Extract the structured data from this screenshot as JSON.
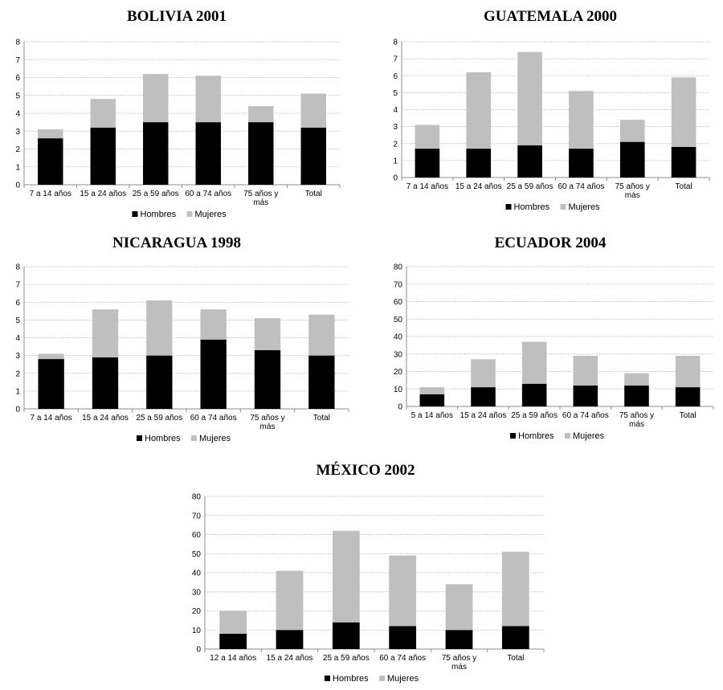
{
  "colors": {
    "hombres": "#000000",
    "mujeres": "#bfbfbf",
    "grid": "#b0b0b0",
    "axis": "#8c8c8c"
  },
  "chart_data": [
    {
      "type": "bar",
      "stacked": true,
      "title": "BOLIVIA 2001",
      "categories": [
        [
          "7 a 14 años"
        ],
        [
          "15 a 24 años"
        ],
        [
          "25 a 59 años"
        ],
        [
          "60 a 74 años"
        ],
        [
          "75 años y",
          "más"
        ],
        [
          "Total"
        ]
      ],
      "series": [
        {
          "name": "Hombres",
          "values": [
            2.6,
            3.2,
            3.5,
            3.5,
            3.5,
            3.2
          ]
        },
        {
          "name": "Mujeres",
          "values": [
            0.5,
            1.6,
            2.7,
            2.6,
            0.9,
            1.9
          ]
        }
      ],
      "ylim": [
        0,
        8
      ],
      "yticks": [
        0,
        1,
        2,
        3,
        4,
        5,
        6,
        7,
        8
      ],
      "grid": true,
      "legend": "bottom"
    },
    {
      "type": "bar",
      "stacked": true,
      "title": "GUATEMALA 2000",
      "categories": [
        [
          "7 a 14 años"
        ],
        [
          "15 a 24 años"
        ],
        [
          "25 a 59 años"
        ],
        [
          "60 a 74 años"
        ],
        [
          "75 años y",
          "más"
        ],
        [
          "Total"
        ]
      ],
      "series": [
        {
          "name": "Hombres",
          "values": [
            1.7,
            1.7,
            1.9,
            1.7,
            2.1,
            1.8
          ]
        },
        {
          "name": "Mujeres",
          "values": [
            1.4,
            4.5,
            5.5,
            3.4,
            1.3,
            4.1
          ]
        }
      ],
      "ylim": [
        0,
        8
      ],
      "yticks": [
        0,
        1,
        2,
        3,
        4,
        5,
        6,
        7,
        8
      ],
      "grid": true,
      "legend": "bottom"
    },
    {
      "type": "bar",
      "stacked": true,
      "title": "NICARAGUA 1998",
      "categories": [
        [
          "7 a 14 años"
        ],
        [
          "15 a 24 años"
        ],
        [
          "25 a 59 años"
        ],
        [
          "60 a 74 años"
        ],
        [
          "75 años y",
          "más"
        ],
        [
          "Total"
        ]
      ],
      "series": [
        {
          "name": "Hombres",
          "values": [
            2.8,
            2.9,
            3.0,
            3.9,
            3.3,
            3.0
          ]
        },
        {
          "name": "Mujeres",
          "values": [
            0.3,
            2.7,
            3.1,
            1.7,
            1.8,
            2.3
          ]
        }
      ],
      "ylim": [
        0,
        8
      ],
      "yticks": [
        0,
        1,
        2,
        3,
        4,
        5,
        6,
        7,
        8
      ],
      "grid": true,
      "legend": "bottom"
    },
    {
      "type": "bar",
      "stacked": true,
      "title": "ECUADOR 2004",
      "categories": [
        [
          "5 a 14 años"
        ],
        [
          "15 a 24 años"
        ],
        [
          "25 a 59 años"
        ],
        [
          "60 a 74 años"
        ],
        [
          "75 años y",
          "más"
        ],
        [
          "Total"
        ]
      ],
      "series": [
        {
          "name": "Hombres",
          "values": [
            7,
            11,
            13,
            12,
            12,
            11
          ]
        },
        {
          "name": "Mujeres",
          "values": [
            4,
            16,
            24,
            17,
            7,
            18
          ]
        }
      ],
      "ylim": [
        0,
        80
      ],
      "yticks": [
        0,
        10,
        20,
        30,
        40,
        50,
        60,
        70,
        80
      ],
      "grid": true,
      "legend": "bottom"
    },
    {
      "type": "bar",
      "stacked": true,
      "title": "MÉXICO 2002",
      "categories": [
        [
          "12 a 14 años"
        ],
        [
          "15 a 24 años"
        ],
        [
          "25 a 59 años"
        ],
        [
          "60 a 74 años"
        ],
        [
          "75 años y",
          "más"
        ],
        [
          "Total"
        ]
      ],
      "series": [
        {
          "name": "Hombres",
          "values": [
            8,
            10,
            14,
            12,
            10,
            12
          ]
        },
        {
          "name": "Mujeres",
          "values": [
            12,
            31,
            48,
            37,
            24,
            39
          ]
        }
      ],
      "ylim": [
        0,
        80
      ],
      "yticks": [
        0,
        10,
        20,
        30,
        40,
        50,
        60,
        70,
        80
      ],
      "grid": true,
      "legend": "bottom"
    }
  ]
}
